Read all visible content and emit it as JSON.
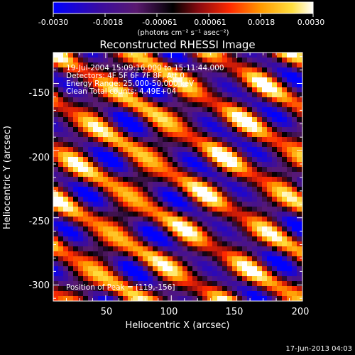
{
  "colorbar": {
    "ticks": [
      "-0.0030",
      "-0.0018",
      "-0.00061",
      "0.00061",
      "0.0018",
      "0.0030"
    ],
    "unit_label": "(photons cm⁻² s⁻¹ asec⁻²)",
    "colors": [
      "#0000ff",
      "#3a0ca0",
      "#5a1a70",
      "#000000",
      "#8a0a10",
      "#ff2a00",
      "#ff9a00",
      "#ffe040",
      "#ffffff"
    ]
  },
  "chart_data": {
    "type": "heatmap",
    "title": "Reconstructed RHESSI Image",
    "xlabel": "Heliocentric X (arcsec)",
    "ylabel": "Heliocentric Y (arcsec)",
    "xlim": [
      10,
      200
    ],
    "ylim": [
      -312,
      -127
    ],
    "xticks": [
      50,
      100,
      150,
      200
    ],
    "yticks": [
      -150,
      -200,
      -250,
      -300
    ],
    "value_range": [
      -0.003,
      0.003
    ],
    "peak_position": [
      119,
      -156
    ],
    "stripe_pattern": "diagonal bands alternating bright (yellow/white) and dark (blue/purple), running from upper-left to lower-right"
  },
  "annotations": {
    "line1": "19-Jul-2004 15:09:16.000 to 15:11:44.000",
    "line2": "Detectors: 4F 5F 6F 7F 8F, Att 0",
    "line3": "Energy Range: 25.000-50.000 keV",
    "line4": "Clean     Total counts: 4.49E+04",
    "peak_text": "Position of Peak = [119,-156]"
  },
  "footer": {
    "timestamp": "17-Jun-2013 04:03"
  }
}
